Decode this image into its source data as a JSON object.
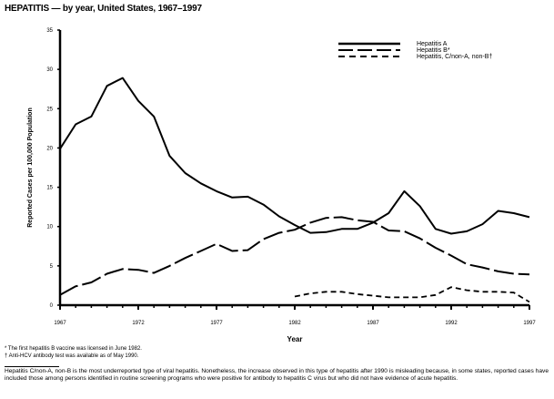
{
  "title": "HEPATITIS — by year, United States, 1967–1997",
  "chart_data": {
    "type": "line",
    "title": "HEPATITIS — by year, United States, 1967–1997",
    "xlabel": "Year",
    "ylabel": "Reported Cases per 100,000 Population",
    "xlim": [
      1967,
      1997
    ],
    "ylim": [
      0,
      35
    ],
    "xticks": [
      1967,
      1972,
      1977,
      1982,
      1987,
      1992,
      1997
    ],
    "yticks": [
      0,
      5,
      10,
      15,
      20,
      25,
      30,
      35
    ],
    "grid": false,
    "legend_position": "top-right",
    "series": [
      {
        "name": "Hepatitis A",
        "style": "solid",
        "x": [
          1967,
          1968,
          1969,
          1970,
          1971,
          1972,
          1973,
          1974,
          1975,
          1976,
          1977,
          1978,
          1979,
          1980,
          1981,
          1982,
          1983,
          1984,
          1985,
          1986,
          1987,
          1988,
          1989,
          1990,
          1991,
          1992,
          1993,
          1994,
          1995,
          1996,
          1997
        ],
        "y": [
          19.9,
          23.0,
          24.0,
          27.9,
          28.9,
          26.0,
          24.0,
          19.0,
          16.8,
          15.5,
          14.5,
          13.7,
          13.8,
          12.8,
          11.3,
          10.2,
          9.2,
          9.3,
          9.7,
          9.7,
          10.5,
          11.7,
          14.5,
          12.6,
          9.7,
          9.1,
          9.4,
          10.3,
          12.0,
          11.7,
          11.2
        ]
      },
      {
        "name": "Hepatitis B*",
        "style": "long-dash",
        "x": [
          1967,
          1968,
          1969,
          1970,
          1971,
          1972,
          1973,
          1974,
          1975,
          1976,
          1977,
          1978,
          1979,
          1980,
          1981,
          1982,
          1983,
          1984,
          1985,
          1986,
          1987,
          1988,
          1989,
          1990,
          1991,
          1992,
          1993,
          1994,
          1995,
          1996,
          1997
        ],
        "y": [
          1.3,
          2.4,
          2.9,
          4.0,
          4.6,
          4.5,
          4.1,
          5.0,
          6.0,
          6.9,
          7.8,
          6.9,
          7.0,
          8.4,
          9.2,
          9.6,
          10.5,
          11.1,
          11.2,
          10.8,
          10.6,
          9.5,
          9.4,
          8.5,
          7.3,
          6.3,
          5.2,
          4.8,
          4.3,
          4.0,
          3.9
        ]
      },
      {
        "name": "Hepatitis, C/non-A, non-B†",
        "style": "short-dash",
        "x": [
          1982,
          1983,
          1984,
          1985,
          1986,
          1987,
          1988,
          1989,
          1990,
          1991,
          1992,
          1993,
          1994,
          1995,
          1996,
          1997
        ],
        "y": [
          1.1,
          1.5,
          1.7,
          1.7,
          1.4,
          1.2,
          1.0,
          1.0,
          1.0,
          1.3,
          2.3,
          1.9,
          1.7,
          1.7,
          1.6,
          0.4
        ]
      }
    ]
  },
  "footnotes": [
    "* The first hepatitis B vaccine was licensed in June 1982.",
    "† Anti-HCV antibody test was available as of May 1990."
  ],
  "note": "Hepatitis C/non-A, non-B is the most underreported type of viral hepatitis. Nonetheless, the increase observed in this type of hepatitis after 1990 is misleading because, in some states, reported cases have included those among persons identified in routine screening programs who were positive for antibody to hepatitis C virus but who did not have evidence of acute hepatitis."
}
